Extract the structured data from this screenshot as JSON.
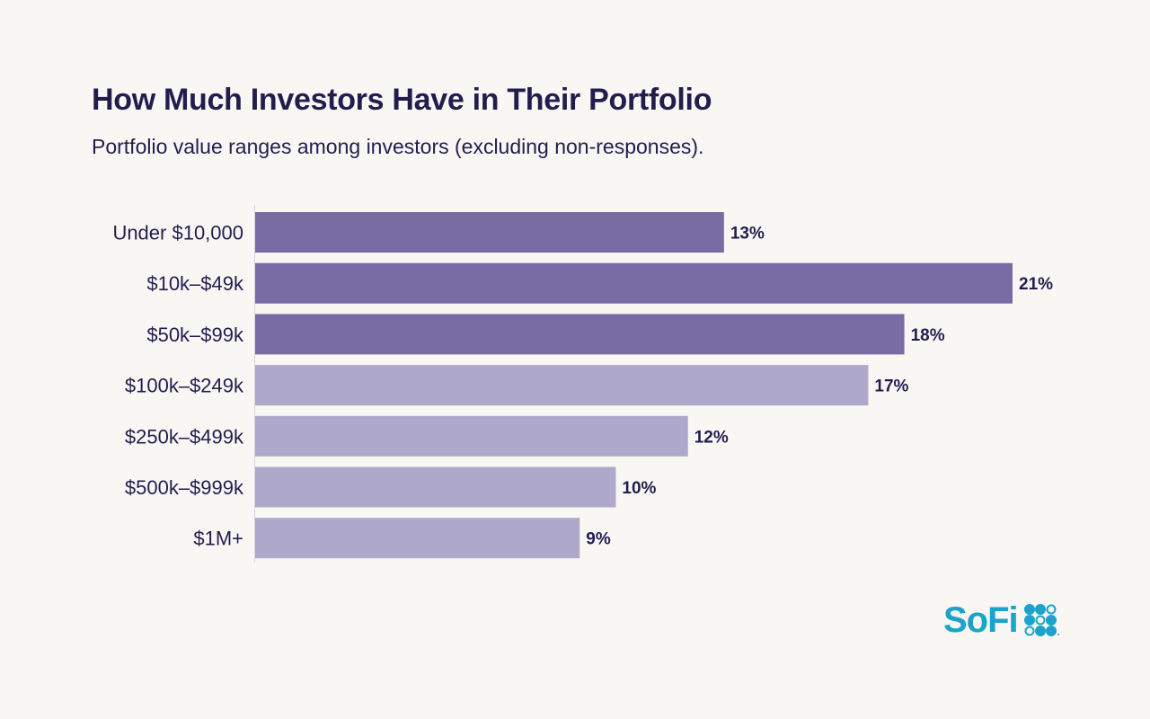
{
  "chart_data": {
    "type": "bar",
    "orientation": "horizontal",
    "title": "How Much Investors Have in Their Portfolio",
    "subtitle": "Portfolio value ranges among investors (excluding non-responses).",
    "categories": [
      "Under $10,000",
      "$10k–$49k",
      "$50k–$99k",
      "$100k–$249k",
      "$250k–$499k",
      "$500k–$999k",
      "$1M+"
    ],
    "values": [
      13,
      21,
      18,
      17,
      12,
      10,
      9
    ],
    "value_labels": [
      "13%",
      "21%",
      "18%",
      "17%",
      "12%",
      "10%",
      "9%"
    ],
    "highlighted": [
      true,
      true,
      true,
      false,
      false,
      false,
      false
    ],
    "unit": "%",
    "xlim": [
      0,
      21
    ],
    "grid": false,
    "legend": "none",
    "colors": {
      "highlight": "#776ca3",
      "base": "#aea8ca",
      "text": "#231d4e",
      "axis": "#d8d6dc"
    }
  },
  "brand": {
    "logo_text": "SoFi",
    "color": "#1ba3cc"
  }
}
